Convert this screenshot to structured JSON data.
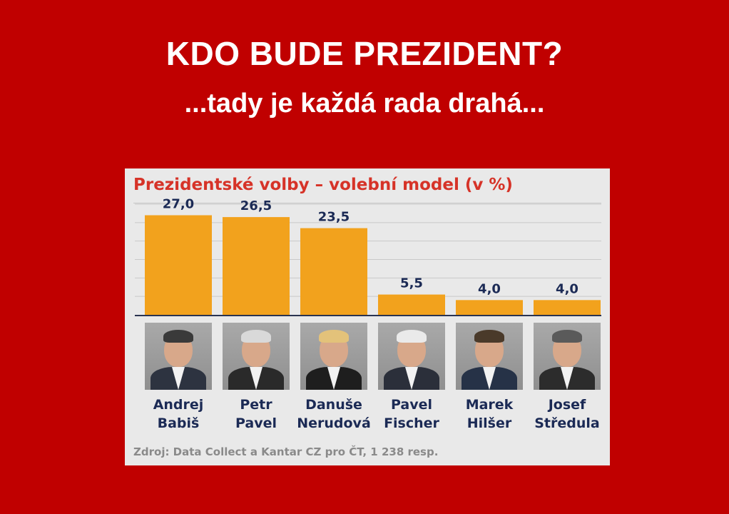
{
  "headline": "KDO BUDE PREZIDENT?",
  "subheadline": "...tady je každá rada drahá...",
  "colors": {
    "background": "#c00000",
    "bar": "#f2a21d",
    "title": "#d63328",
    "label": "#1b2a55"
  },
  "source": "Zdroj: Data Collect a Kantar CZ pro ČT, 1 238 resp.",
  "candidates": [
    {
      "first": "Andrej",
      "last": "Babiš",
      "photo_icon": "portrait-andrej-babis"
    },
    {
      "first": "Petr",
      "last": "Pavel",
      "photo_icon": "portrait-petr-pavel"
    },
    {
      "first": "Danuše",
      "last": "Nerudová",
      "photo_icon": "portrait-danuse-nerudova"
    },
    {
      "first": "Pavel",
      "last": "Fischer",
      "photo_icon": "portrait-pavel-fischer"
    },
    {
      "first": "Marek",
      "last": "Hilšer",
      "photo_icon": "portrait-marek-hilser"
    },
    {
      "first": "Josef",
      "last": "Středula",
      "photo_icon": "portrait-josef-stredula"
    }
  ],
  "chart_data": {
    "type": "bar",
    "title": "Prezidentské volby – volební model (v %)",
    "categories": [
      "Andrej Babiš",
      "Petr Pavel",
      "Danuše Nerudová",
      "Pavel Fischer",
      "Marek Hilšer",
      "Josef Středula"
    ],
    "values": [
      27.0,
      26.5,
      23.5,
      5.5,
      4.0,
      4.0
    ],
    "value_labels": [
      "27,0",
      "26,5",
      "23,5",
      "5,5",
      "4,0",
      "4,0"
    ],
    "ylim": [
      0,
      30
    ],
    "grid": true,
    "legend": "none"
  }
}
